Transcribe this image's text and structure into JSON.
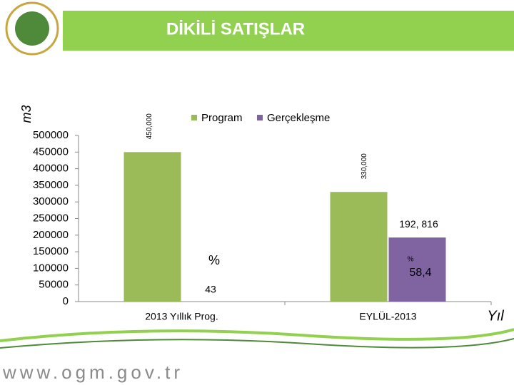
{
  "title": "DİKİLİ SATIŞLAR",
  "footer": "www.ogm.gov.tr",
  "chart_data": {
    "type": "bar",
    "y_label": "m3",
    "x_label": "Yıl",
    "categories": [
      "2013 Yıllık Prog.",
      "EYLÜL-2013"
    ],
    "series": [
      {
        "name": "Program",
        "color": "#9bbb59",
        "values": [
          450000,
          330000
        ],
        "value_labels": [
          "450,000",
          "330,000"
        ]
      },
      {
        "name": "Gerçekleşme",
        "color": "#8064a2",
        "values": [
          null,
          192816
        ],
        "value_labels": [
          null,
          "192, 816"
        ]
      }
    ],
    "ylim": [
      0,
      500000
    ],
    "yticks": [
      0,
      50000,
      100000,
      150000,
      200000,
      250000,
      300000,
      350000,
      400000,
      450000,
      500000
    ],
    "annotations": [
      "%",
      "43",
      "%",
      "58,4"
    ]
  }
}
